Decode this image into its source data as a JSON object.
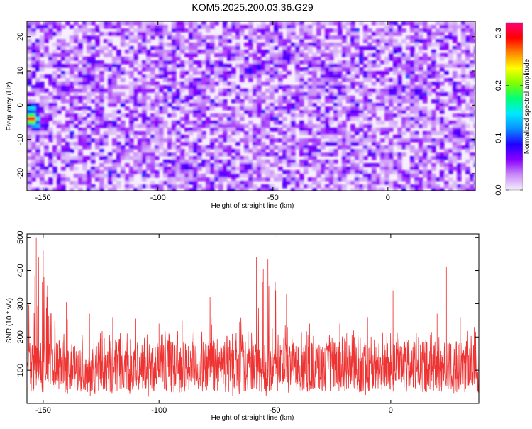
{
  "chart_data": [
    {
      "type": "heatmap",
      "title": "KOM5.2025.200.03.36.G29",
      "xlabel": "Height of straight line (km)",
      "ylabel": "Frequency (Hz)",
      "xlim": [
        -157,
        38
      ],
      "ylim": [
        -25,
        24.5
      ],
      "xticks": [
        "-150",
        "-100",
        "-50",
        "0"
      ],
      "xtick_values": [
        -150,
        -100,
        -50,
        0
      ],
      "yticks": [
        "20",
        "10",
        "0",
        "-10",
        "-20"
      ],
      "ytick_values": [
        20,
        10,
        0,
        -10,
        -20
      ],
      "colorbar": {
        "label": "Normalized spectral amplitude",
        "range": [
          0.0,
          0.32
        ],
        "ticks": [
          "0.0",
          "0.1",
          "0.2",
          "0.3"
        ],
        "tick_values": [
          0.0,
          0.1,
          0.2,
          0.3
        ],
        "colors": [
          "#f5eeff",
          "#c98cf7",
          "#8a00ff",
          "#1f00ff",
          "#0a8cff",
          "#00e8ff",
          "#00ff7a",
          "#7dff00",
          "#ffff00",
          "#ff8800",
          "#ff0000",
          "#ff0077"
        ]
      },
      "hotspots": [
        {
          "x": -155,
          "y": -4,
          "v": 0.32
        },
        {
          "x": -155,
          "y": -1,
          "v": 0.16
        },
        {
          "x": -153,
          "y": -6,
          "v": 0.14
        },
        {
          "x": -60,
          "y": 10,
          "v": 0.1
        },
        {
          "x": -56,
          "y": 11,
          "v": 0.09
        },
        {
          "x": -88,
          "y": -18,
          "v": 0.09
        },
        {
          "x": -44,
          "y": 14,
          "v": 0.09
        },
        {
          "x": -72,
          "y": -20,
          "v": 0.08
        },
        {
          "x": 2,
          "y": 4,
          "v": 0.09
        },
        {
          "x": 13,
          "y": 4,
          "v": 0.09
        },
        {
          "x": 30,
          "y": -8,
          "v": 0.09
        },
        {
          "x": -141,
          "y": 5,
          "v": 0.08
        },
        {
          "x": -130,
          "y": 8,
          "v": 0.08
        },
        {
          "x": -25,
          "y": 9,
          "v": 0.08
        },
        {
          "x": -15,
          "y": -2,
          "v": 0.08
        },
        {
          "x": -100,
          "y": 22,
          "v": 0.08
        }
      ]
    },
    {
      "type": "line",
      "xlabel": "Height of straight line (km)",
      "ylabel": "SNR (10 * v/v)",
      "xlim": [
        -157,
        38
      ],
      "ylim": [
        0,
        510
      ],
      "xticks": [
        "-150",
        "-100",
        "-50",
        "0"
      ],
      "xtick_values": [
        -150,
        -100,
        -50,
        0
      ],
      "yticks": [
        "500",
        "400",
        "300",
        "200",
        "100"
      ],
      "ytick_values": [
        500,
        400,
        300,
        200,
        100
      ],
      "color": "#ee3333",
      "peaks": [
        {
          "x": -153,
          "y": 500
        },
        {
          "x": -152,
          "y": 440
        },
        {
          "x": -150,
          "y": 460
        },
        {
          "x": -148,
          "y": 390
        },
        {
          "x": -145,
          "y": 250
        },
        {
          "x": -140,
          "y": 305
        },
        {
          "x": -130,
          "y": 270
        },
        {
          "x": -120,
          "y": 260
        },
        {
          "x": -110,
          "y": 255
        },
        {
          "x": -100,
          "y": 240
        },
        {
          "x": -90,
          "y": 250
        },
        {
          "x": -78,
          "y": 320
        },
        {
          "x": -65,
          "y": 300
        },
        {
          "x": -58,
          "y": 440
        },
        {
          "x": -55,
          "y": 405
        },
        {
          "x": -53,
          "y": 435
        },
        {
          "x": -50,
          "y": 420
        },
        {
          "x": -45,
          "y": 330
        },
        {
          "x": -35,
          "y": 240
        },
        {
          "x": -22,
          "y": 240
        },
        {
          "x": -10,
          "y": 260
        },
        {
          "x": 1,
          "y": 340
        },
        {
          "x": 10,
          "y": 270
        },
        {
          "x": 20,
          "y": 270
        },
        {
          "x": 24,
          "y": 410
        },
        {
          "x": 30,
          "y": 260
        },
        {
          "x": 36,
          "y": 230
        }
      ],
      "baseline_mean": 110,
      "baseline_spread": 110
    }
  ]
}
